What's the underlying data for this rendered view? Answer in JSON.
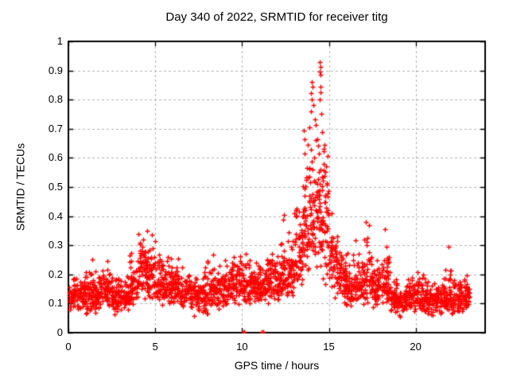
{
  "chart_data": {
    "type": "scatter",
    "title": "Day 340 of 2022, SRMTID for receiver titg",
    "xlabel": "GPS time / hours",
    "ylabel": "SRMTID / TECUs",
    "xlim": [
      0,
      24
    ],
    "ylim": [
      0,
      1
    ],
    "xticks": {
      "values": [
        0,
        5,
        10,
        15,
        20
      ],
      "labels": [
        "0",
        "5",
        "10",
        "15",
        "20"
      ]
    },
    "yticks": {
      "values": [
        0,
        0.1,
        0.2,
        0.3,
        0.4,
        0.5,
        0.6,
        0.7,
        0.8,
        0.9,
        1
      ],
      "labels": [
        "0",
        "0.1",
        "0.2",
        "0.3",
        "0.4",
        "0.5",
        "0.6",
        "0.7",
        "0.8",
        "0.9",
        "1"
      ]
    },
    "grid": true,
    "grid_color": "#b0b0b0",
    "border_color": "#000000",
    "marker": {
      "shape": "plus",
      "color": "#ff0000",
      "size": 7
    },
    "series_name": "SRMTID",
    "bands_format": [
      "x_start_hour",
      "x_end_hour",
      "y_min",
      "y_typical",
      "y_max",
      "n_points"
    ],
    "bands": [
      [
        0.0,
        0.5,
        0.07,
        0.13,
        0.22,
        52
      ],
      [
        0.5,
        1.0,
        0.07,
        0.13,
        0.2,
        52
      ],
      [
        1.0,
        1.5,
        0.05,
        0.13,
        0.28,
        52
      ],
      [
        1.5,
        2.0,
        0.06,
        0.14,
        0.25,
        52
      ],
      [
        2.0,
        2.5,
        0.07,
        0.15,
        0.26,
        52
      ],
      [
        2.5,
        3.0,
        0.05,
        0.12,
        0.2,
        52
      ],
      [
        3.0,
        3.5,
        0.05,
        0.13,
        0.22,
        52
      ],
      [
        3.5,
        4.0,
        0.09,
        0.17,
        0.31,
        54
      ],
      [
        4.0,
        4.5,
        0.11,
        0.21,
        0.4,
        58
      ],
      [
        4.5,
        5.0,
        0.11,
        0.2,
        0.4,
        58
      ],
      [
        5.0,
        5.5,
        0.09,
        0.16,
        0.3,
        52
      ],
      [
        5.5,
        6.0,
        0.09,
        0.16,
        0.28,
        52
      ],
      [
        6.0,
        6.5,
        0.07,
        0.15,
        0.28,
        52
      ],
      [
        6.5,
        7.0,
        0.07,
        0.14,
        0.25,
        52
      ],
      [
        7.0,
        7.5,
        0.05,
        0.13,
        0.22,
        52
      ],
      [
        7.5,
        8.0,
        0.05,
        0.13,
        0.25,
        52
      ],
      [
        8.0,
        8.5,
        0.07,
        0.15,
        0.3,
        52
      ],
      [
        8.5,
        9.0,
        0.07,
        0.15,
        0.28,
        52
      ],
      [
        9.0,
        9.5,
        0.09,
        0.16,
        0.3,
        52
      ],
      [
        9.5,
        10.0,
        0.09,
        0.17,
        0.32,
        52
      ],
      [
        10.0,
        10.5,
        0.09,
        0.16,
        0.3,
        52
      ],
      [
        10.5,
        11.0,
        0.09,
        0.16,
        0.28,
        52
      ],
      [
        11.0,
        11.5,
        0.09,
        0.16,
        0.3,
        52
      ],
      [
        11.5,
        12.0,
        0.11,
        0.18,
        0.33,
        52
      ],
      [
        12.0,
        12.5,
        0.11,
        0.19,
        0.41,
        54
      ],
      [
        12.5,
        13.0,
        0.12,
        0.21,
        0.4,
        54
      ],
      [
        13.0,
        13.5,
        0.14,
        0.27,
        0.55,
        58
      ],
      [
        13.5,
        14.0,
        0.17,
        0.38,
        0.78,
        60
      ],
      [
        14.0,
        14.5,
        0.18,
        0.44,
        0.78,
        62
      ],
      [
        14.5,
        15.0,
        0.12,
        0.4,
        0.76,
        62
      ],
      [
        15.0,
        15.5,
        0.11,
        0.24,
        0.45,
        56
      ],
      [
        15.5,
        16.0,
        0.09,
        0.19,
        0.38,
        54
      ],
      [
        16.0,
        16.5,
        0.08,
        0.15,
        0.3,
        52
      ],
      [
        16.5,
        17.0,
        0.09,
        0.17,
        0.33,
        52
      ],
      [
        17.0,
        17.5,
        0.09,
        0.19,
        0.38,
        54
      ],
      [
        17.5,
        18.0,
        0.08,
        0.16,
        0.32,
        52
      ],
      [
        18.0,
        18.5,
        0.07,
        0.16,
        0.36,
        52
      ],
      [
        18.5,
        19.0,
        0.05,
        0.12,
        0.22,
        52
      ],
      [
        19.0,
        19.5,
        0.05,
        0.11,
        0.2,
        52
      ],
      [
        19.5,
        20.0,
        0.07,
        0.13,
        0.27,
        52
      ],
      [
        20.0,
        20.5,
        0.07,
        0.13,
        0.25,
        52
      ],
      [
        20.5,
        21.0,
        0.05,
        0.11,
        0.22,
        52
      ],
      [
        21.0,
        21.5,
        0.06,
        0.11,
        0.2,
        52
      ],
      [
        21.5,
        22.0,
        0.07,
        0.13,
        0.3,
        52
      ],
      [
        22.0,
        22.5,
        0.06,
        0.12,
        0.24,
        52
      ],
      [
        22.5,
        23.0,
        0.07,
        0.13,
        0.25,
        52
      ],
      [
        23.0,
        23.1,
        0.09,
        0.13,
        0.2,
        12
      ]
    ],
    "outliers": [
      [
        10.08,
        0.004
      ],
      [
        10.14,
        0.004
      ],
      [
        11.13,
        0.004
      ],
      [
        11.2,
        0.004
      ],
      [
        14.48,
        0.93
      ],
      [
        14.5,
        0.912
      ],
      [
        14.46,
        0.897
      ],
      [
        14.52,
        0.885
      ],
      [
        14.0,
        0.862
      ],
      [
        14.04,
        0.843
      ],
      [
        14.5,
        0.845
      ],
      [
        13.98,
        0.822
      ],
      [
        14.53,
        0.824
      ],
      [
        14.02,
        0.801
      ],
      [
        14.49,
        0.8
      ],
      [
        14.1,
        0.782
      ],
      [
        13.95,
        0.76
      ],
      [
        14.55,
        0.752
      ],
      [
        14.2,
        0.731
      ],
      [
        13.88,
        0.706
      ],
      [
        14.62,
        0.688
      ],
      [
        14.35,
        0.664
      ],
      [
        13.8,
        0.645
      ],
      [
        14.68,
        0.624
      ],
      [
        14.15,
        0.601
      ],
      [
        14.72,
        0.58
      ],
      [
        13.75,
        0.565
      ],
      [
        12.42,
        0.405
      ],
      [
        12.35,
        0.388
      ],
      [
        17.15,
        0.38
      ],
      [
        17.3,
        0.37
      ],
      [
        18.25,
        0.355
      ],
      [
        21.9,
        0.295
      ]
    ]
  }
}
